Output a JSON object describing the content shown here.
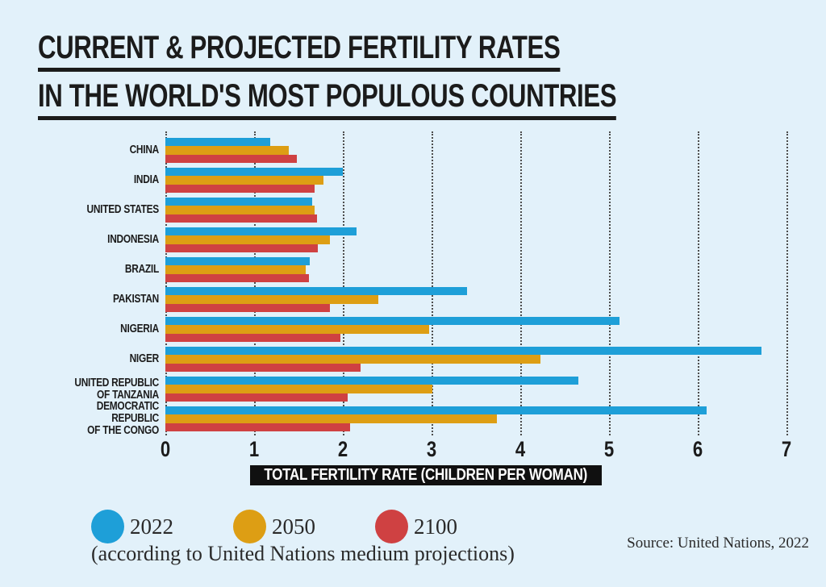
{
  "title": {
    "line1": "CURRENT & PROJECTED FERTILITY RATES",
    "line2": "IN THE WORLD'S MOST POPULOUS COUNTRIES"
  },
  "chart_data": {
    "type": "bar",
    "orientation": "horizontal",
    "title": "Current & projected fertility rates in the world's most populous countries",
    "categories": [
      "CHINA",
      "INDIA",
      "UNITED STATES",
      "INDONESIA",
      "BRAZIL",
      "PAKISTAN",
      "NIGERIA",
      "NIGER",
      "UNITED REPUBLIC\nOF TANZANIA",
      "DEMOCRATIC REPUBLIC\nOF THE CONGO"
    ],
    "series": [
      {
        "name": "2022",
        "color": "#1E9FD8",
        "values": [
          1.18,
          2.0,
          1.65,
          2.15,
          1.63,
          3.4,
          5.12,
          6.72,
          4.65,
          6.1
        ]
      },
      {
        "name": "2050",
        "color": "#DD9E14",
        "values": [
          1.39,
          1.78,
          1.68,
          1.85,
          1.58,
          2.4,
          2.97,
          4.23,
          3.01,
          3.74
        ]
      },
      {
        "name": "2100",
        "color": "#CF4142",
        "values": [
          1.48,
          1.68,
          1.71,
          1.72,
          1.62,
          1.85,
          1.97,
          2.2,
          2.05,
          2.08
        ]
      }
    ],
    "xlabel": "TOTAL FERTILITY RATE (CHILDREN PER WOMAN)",
    "ylabel": "",
    "xlim": [
      0,
      7
    ],
    "xticks": [
      0,
      1,
      2,
      3,
      4,
      5,
      6,
      7
    ],
    "grid": "vertical-dotted",
    "legend_position": "bottom-left"
  },
  "legend": {
    "note": "(according to United Nations medium projections)"
  },
  "source": "Source: United Nations, 2022",
  "colors": {
    "background": "#E2F1FA",
    "text": "#1b1b1b",
    "banner_bg": "#101010",
    "banner_text": "#FFFFFF",
    "gridline": "#4d4d4d",
    "blue_2022": "#1E9FD8",
    "orange_2050": "#DD9E14",
    "red_2100": "#CF4142"
  }
}
